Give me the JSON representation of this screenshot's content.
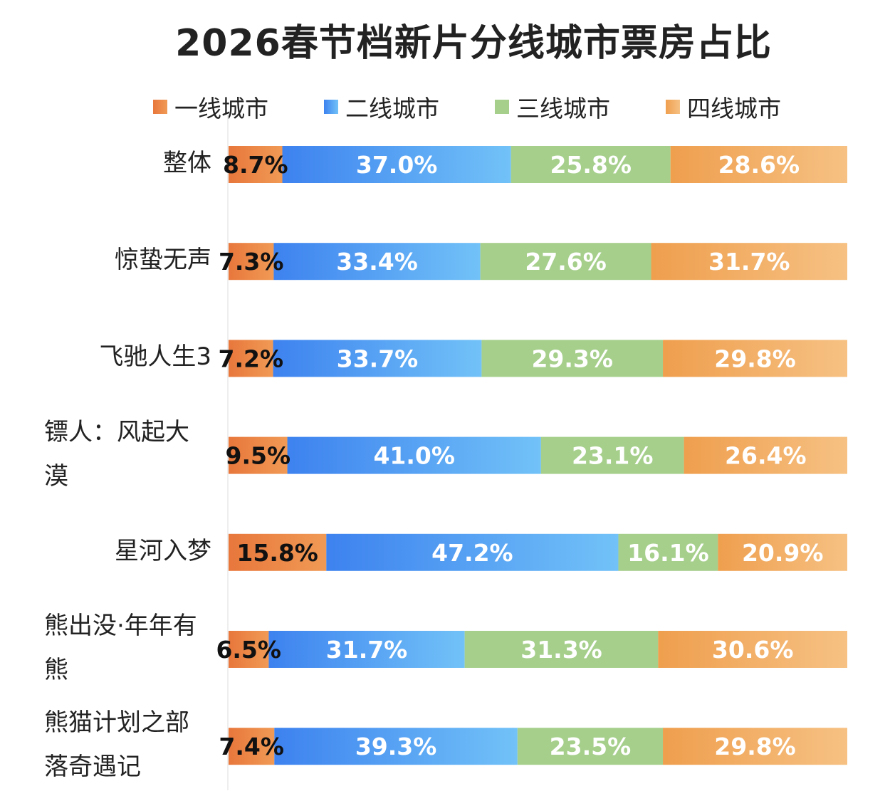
{
  "chart_data": {
    "type": "bar",
    "orientation": "horizontal",
    "stacked": true,
    "title": "2026春节档新片分线城市票房占比",
    "legend_position": "top",
    "categories": [
      "整体",
      "惊蛰无声",
      "飞驰人生3",
      "镖人：风起大漠",
      "星河入梦",
      "熊出没·年年有熊",
      "熊猫计划之部落奇遇记"
    ],
    "series": [
      {
        "name": "一线城市",
        "values": [
          8.7,
          7.3,
          7.2,
          9.5,
          15.8,
          6.5,
          7.4
        ],
        "color": "#e8773c",
        "color2": "#f09a55",
        "label_color": "#111111"
      },
      {
        "name": "二线城市",
        "values": [
          37.0,
          33.4,
          33.7,
          41.0,
          47.2,
          31.7,
          39.3
        ],
        "color": "#3d82ef",
        "color2": "#72c2f8",
        "label_color": "#ffffff"
      },
      {
        "name": "三线城市",
        "values": [
          25.8,
          27.6,
          29.3,
          23.1,
          16.1,
          31.3,
          23.5
        ],
        "color": "#a6cf8c",
        "color2": "#a6cf8c",
        "label_color": "#ffffff"
      },
      {
        "name": "四线城市",
        "values": [
          28.6,
          31.7,
          29.8,
          26.4,
          20.9,
          30.6,
          29.8
        ],
        "color": "#ef9f4e",
        "color2": "#f6c183",
        "label_color": "#ffffff"
      }
    ],
    "value_suffix": "%",
    "grid": false
  }
}
